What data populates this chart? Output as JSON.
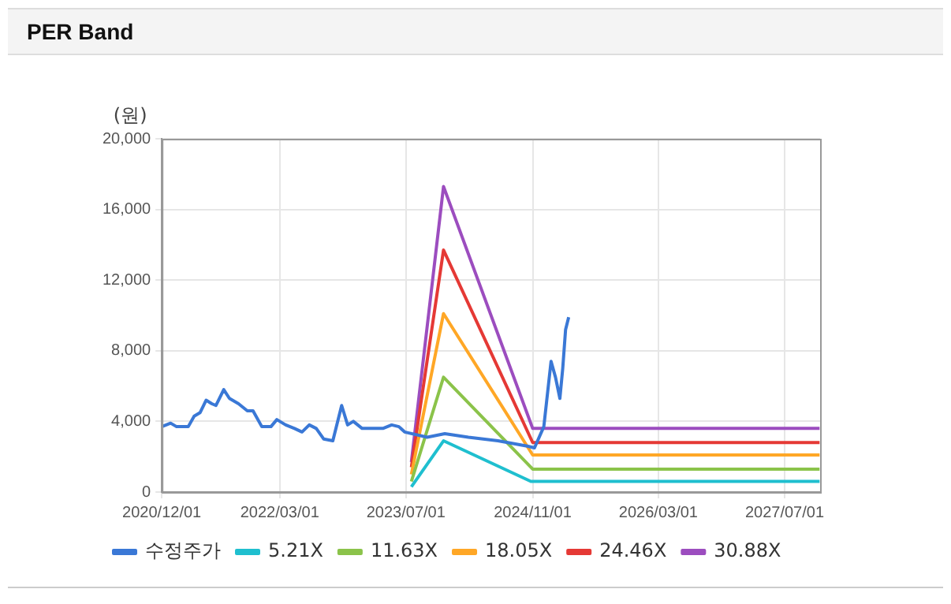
{
  "chart_data": {
    "type": "line",
    "title": "PER Band",
    "ylabel": "(원)",
    "xlim": [
      "2020-12-01",
      "2027-11-15"
    ],
    "xticks": [
      {
        "value": "2020-12-01",
        "label": "2020/12/01"
      },
      {
        "value": "2022-03-01",
        "label": "2022/03/01"
      },
      {
        "value": "2023-07-01",
        "label": "2023/07/01"
      },
      {
        "value": "2024-11-01",
        "label": "2024/11/01"
      },
      {
        "value": "2026-03-01",
        "label": "2026/03/01"
      },
      {
        "value": "2027-07-01",
        "label": "2027/07/01"
      }
    ],
    "ylim": [
      0,
      20000
    ],
    "yticks": [
      0,
      {
        "value": 4000,
        "label": "4,000"
      },
      {
        "value": 8000,
        "label": "8,000"
      },
      {
        "value": 12000,
        "label": "12,000"
      },
      {
        "value": 16000,
        "label": "16,000"
      },
      {
        "value": 20000,
        "label": "20,000"
      }
    ],
    "grid": true,
    "legend": "bottom",
    "marker": "none",
    "line_style": "solid",
    "series": [
      {
        "name": "수정주가",
        "color": "#3a78d6",
        "x": [
          "2020-12-01",
          "2021-01-04",
          "2021-01-27",
          "2021-03-13",
          "2021-04-05",
          "2021-04-28",
          "2021-05-21",
          "2021-06-12",
          "2021-06-28",
          "2021-07-28",
          "2021-08-19",
          "2021-09-23",
          "2021-10-27",
          "2021-11-18",
          "2021-12-22",
          "2022-01-26",
          "2022-02-18",
          "2022-03-24",
          "2022-04-27",
          "2022-05-26",
          "2022-06-23",
          "2022-07-20",
          "2022-08-18",
          "2022-09-22",
          "2022-10-26",
          "2022-11-18",
          "2022-12-10",
          "2023-01-13",
          "2023-02-28",
          "2023-04-03",
          "2023-05-07",
          "2023-06-04",
          "2023-06-26",
          "2023-09-21",
          "2023-11-28",
          "2024-02-27",
          "2024-06-20",
          "2024-10-11",
          "2024-11-08",
          "2024-12-14",
          "2025-01-11",
          "2025-01-28",
          "2025-02-14",
          "2025-02-25",
          "2025-03-08",
          "2025-03-20"
        ],
        "values": [
          3700,
          3900,
          3700,
          3700,
          4300,
          4500,
          5200,
          5000,
          4900,
          5800,
          5300,
          5000,
          4600,
          4600,
          3700,
          3700,
          4100,
          3800,
          3600,
          3400,
          3800,
          3600,
          3000,
          2900,
          4900,
          3800,
          4000,
          3600,
          3600,
          3600,
          3800,
          3700,
          3400,
          3100,
          3300,
          3100,
          2900,
          2600,
          2500,
          3700,
          7400,
          6500,
          5300,
          7000,
          9200,
          9900
        ]
      },
      {
        "name": "5.21X",
        "color": "#1fbfcf",
        "x": [
          "2023-07-22",
          "2023-11-23",
          "2024-10-25",
          "2027-11-13"
        ],
        "values": [
          300,
          2900,
          600,
          600
        ]
      },
      {
        "name": "11.63X",
        "color": "#8bc34a",
        "x": [
          "2023-07-22",
          "2023-11-23",
          "2024-11-01",
          "2027-11-13"
        ],
        "values": [
          600,
          6500,
          1300,
          1300
        ]
      },
      {
        "name": "18.05X",
        "color": "#ffa726",
        "x": [
          "2023-07-22",
          "2023-11-23",
          "2024-11-01",
          "2027-11-13"
        ],
        "values": [
          1000,
          10100,
          2100,
          2100
        ]
      },
      {
        "name": "24.46X",
        "color": "#e53935",
        "x": [
          "2023-07-22",
          "2023-11-23",
          "2024-11-01",
          "2027-11-13"
        ],
        "values": [
          1400,
          13700,
          2800,
          2800
        ]
      },
      {
        "name": "30.88X",
        "color": "#9c4dbf",
        "x": [
          "2023-07-22",
          "2023-11-23",
          "2024-11-01",
          "2027-11-13"
        ],
        "values": [
          1700,
          17300,
          3600,
          3600
        ]
      }
    ]
  }
}
